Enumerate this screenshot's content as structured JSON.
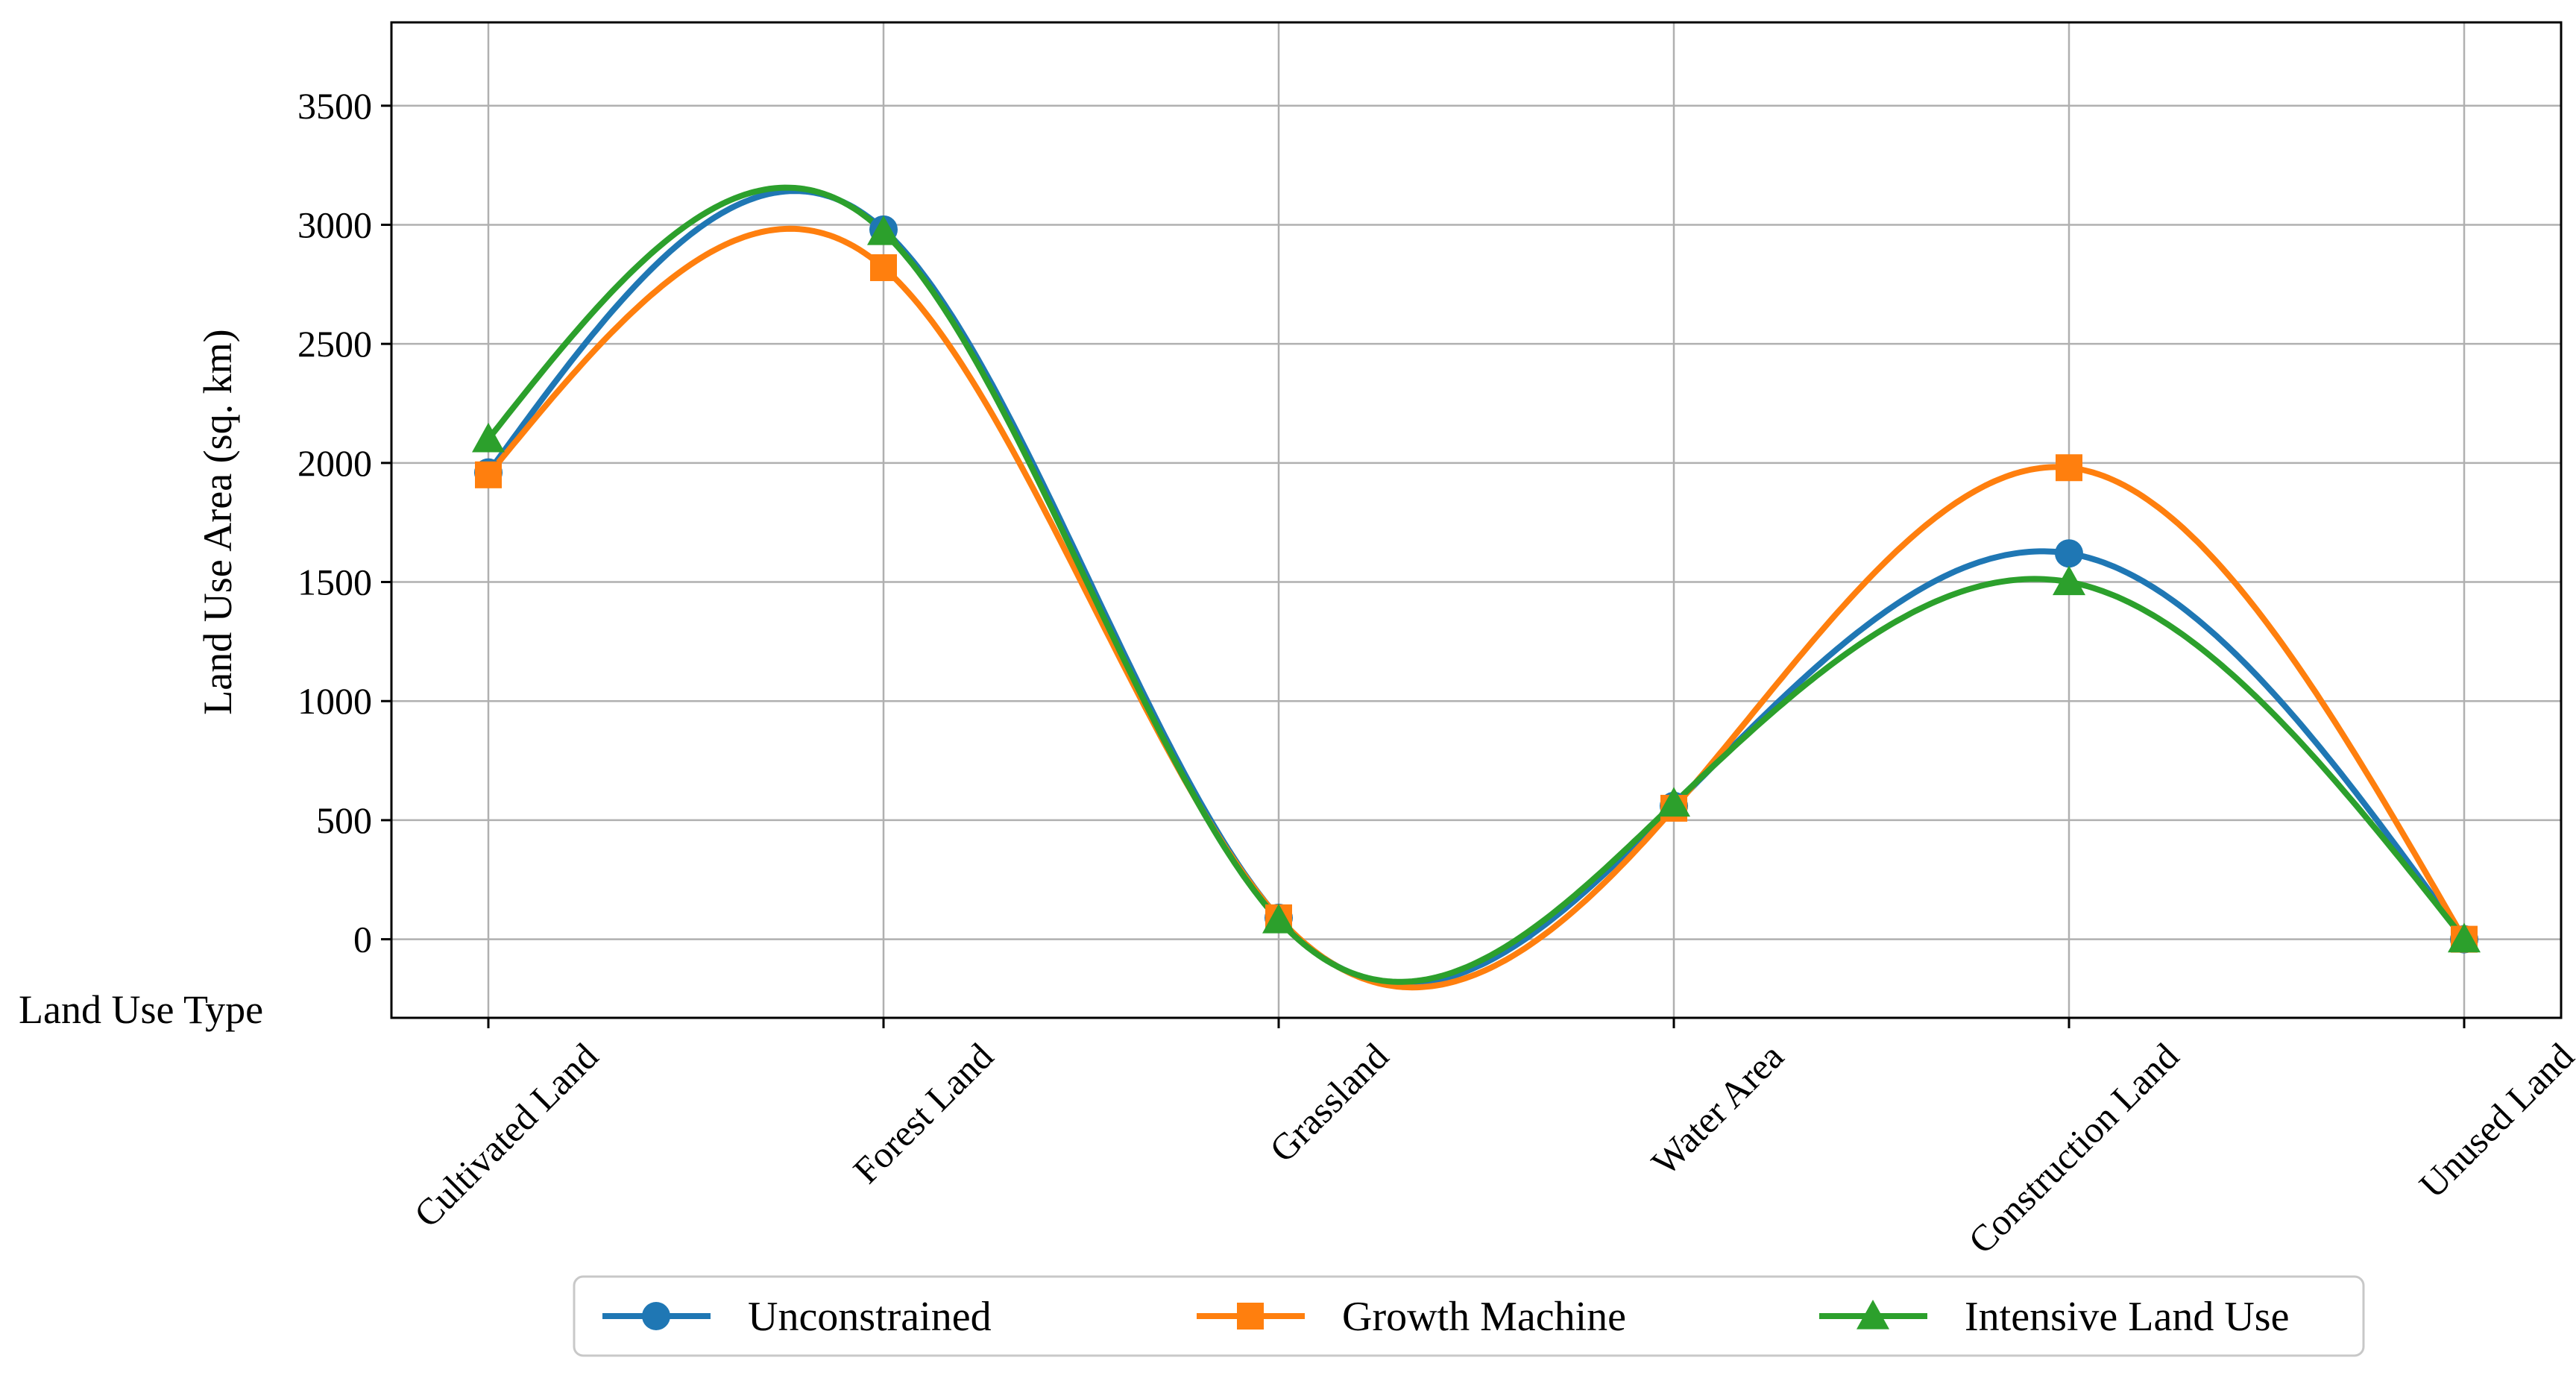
{
  "chart_data": {
    "type": "line",
    "categories": [
      "Cultivated Land",
      "Forest Land",
      "Grassland",
      "Water Area",
      "Construction Land",
      "Unused Land"
    ],
    "series": [
      {
        "name": "Unconstrained",
        "values": [
          1960,
          2980,
          90,
          560,
          1620,
          0
        ],
        "color": "#1f77b4",
        "marker": "circle"
      },
      {
        "name": "Growth Machine",
        "values": [
          1950,
          2820,
          90,
          550,
          1980,
          0
        ],
        "color": "#ff7f0e",
        "marker": "square"
      },
      {
        "name": "Intensive Land Use",
        "values": [
          2100,
          2970,
          80,
          570,
          1500,
          0
        ],
        "color": "#2ca02c",
        "marker": "triangle"
      }
    ],
    "xlabel": "Land Use Type",
    "ylabel": "Land Use Area (sq. km)",
    "yticks": [
      0,
      500,
      1000,
      1500,
      2000,
      2500,
      3000,
      3500
    ],
    "ylim": [
      -330,
      3850
    ],
    "grid": true,
    "legend_position": "bottom-center",
    "smooth": true
  }
}
